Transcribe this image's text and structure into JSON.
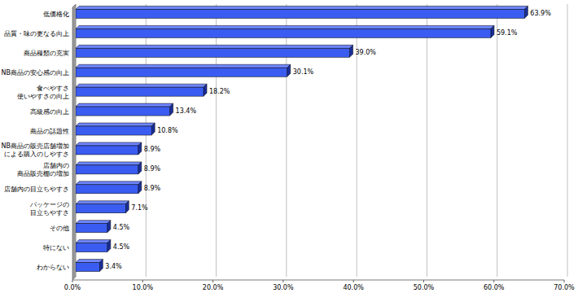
{
  "chart_data": {
    "type": "bar",
    "orientation": "horizontal",
    "categories": [
      "低価格化",
      "品質・味の更なる向上",
      "商品種類の充実",
      "NB商品の安心感の向上",
      "食べやすさ\n使いやすさの向上",
      "高級感の向上",
      "商品の話題性",
      "NB商品の販売店舗増加\nによる購入のしやすさ",
      "店舗内の\n商品販売棚の増加",
      "店舗内の目立ちやすさ",
      "パッケージの\n目立ちやすさ",
      "その他",
      "特にない",
      "わからない"
    ],
    "values": [
      63.9,
      59.1,
      39.0,
      30.1,
      18.2,
      13.4,
      10.8,
      8.9,
      8.9,
      8.9,
      7.1,
      4.5,
      4.5,
      3.4
    ],
    "value_labels": [
      "63.9%",
      "59.1%",
      "39.0%",
      "30.1%",
      "18.2%",
      "13.4%",
      "10.8%",
      "8.9%",
      "8.9%",
      "8.9%",
      "7.1%",
      "4.5%",
      "4.5%",
      "3.4%"
    ],
    "color": "#3a5cf0",
    "xlim": [
      0,
      70
    ],
    "xticks": [
      {
        "value": 0,
        "label": "0.0%"
      },
      {
        "value": 10,
        "label": "10.0%"
      },
      {
        "value": 20,
        "label": "20.0%"
      },
      {
        "value": 30,
        "label": "30.0%"
      },
      {
        "value": 40,
        "label": "40.0%"
      },
      {
        "value": 50,
        "label": "50.0%"
      },
      {
        "value": 60,
        "label": "60.0%"
      },
      {
        "value": 70,
        "label": "70.0%"
      }
    ],
    "grid": true,
    "data_labels": true
  }
}
